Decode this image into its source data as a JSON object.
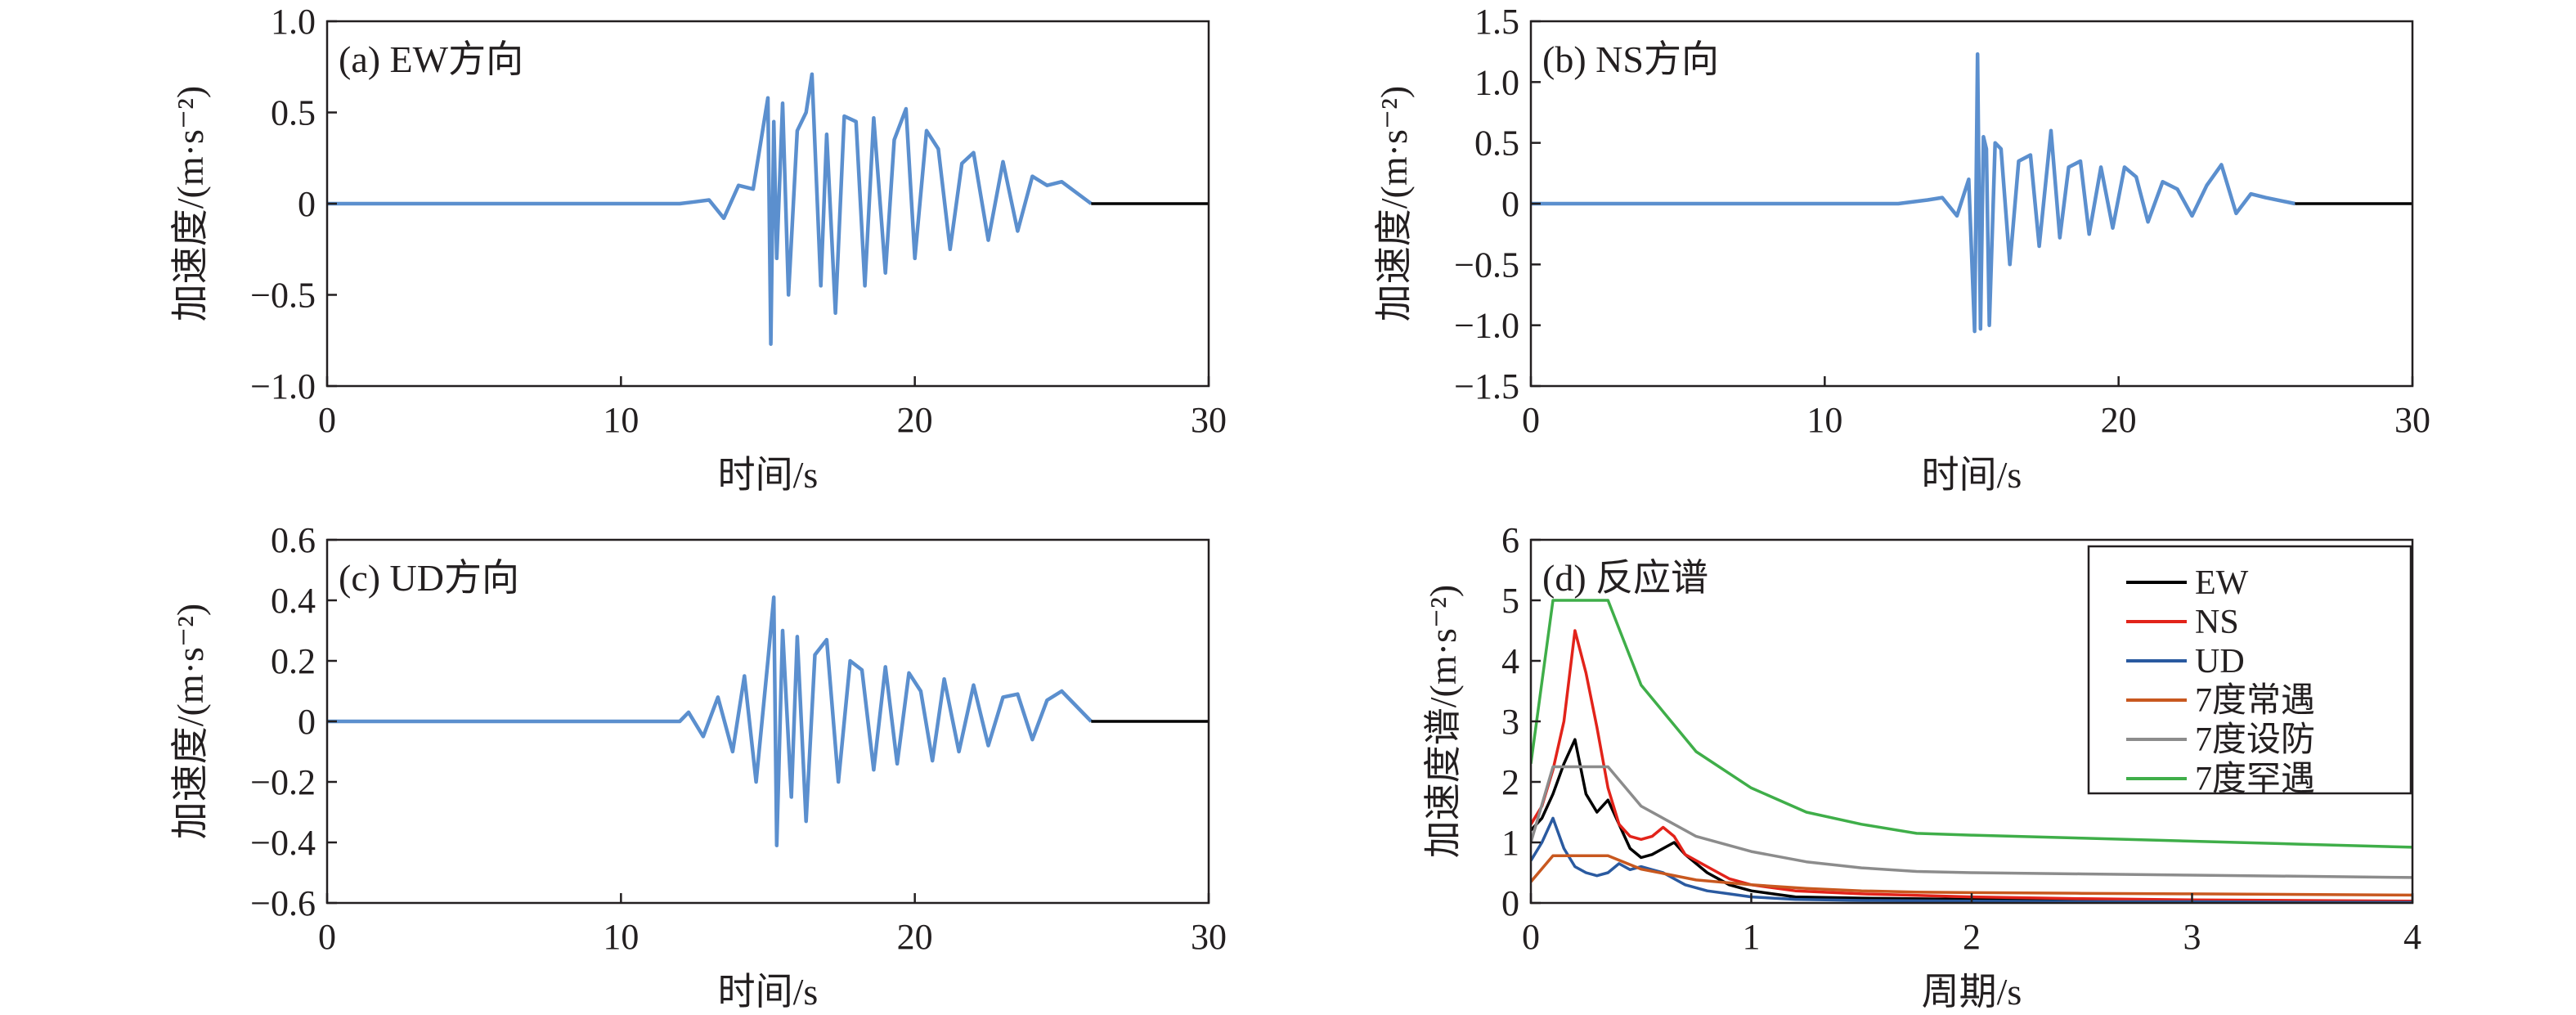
{
  "colors": {
    "axis": "#231f20",
    "wave": "#5b8fce",
    "baseline": "#000000",
    "EW": "#000000",
    "NS": "#e2231a",
    "UD": "#2a5aa0",
    "changyu": "#c8581f",
    "shefang": "#8c8c8c",
    "hanyu": "#3fae49"
  },
  "chart_data": [
    {
      "id": "a",
      "type": "line",
      "title": "(a) EW方向",
      "xlabel": "时间/s",
      "ylabel": "加速度/(m·s⁻²)",
      "xlim": [
        0,
        30
      ],
      "ylim": [
        -1.0,
        1.0
      ],
      "xticks": [
        0,
        10,
        20,
        30
      ],
      "xtick_labels": [
        "0",
        "10",
        "20",
        "30"
      ],
      "yticks": [
        -1.0,
        -0.5,
        0,
        0.5,
        1.0
      ],
      "ytick_labels": [
        "−1.0",
        "−0.5",
        "0",
        "0.5",
        "1.0"
      ],
      "grid": false,
      "series": [
        {
          "color": "#5b8fce",
          "x": [
            0,
            12,
            12.5,
            13,
            13.5,
            14,
            14.5,
            15,
            15.1,
            15.2,
            15.3,
            15.5,
            15.7,
            16,
            16.3,
            16.5,
            16.8,
            17,
            17.3,
            17.6,
            18,
            18.3,
            18.6,
            19,
            19.3,
            19.7,
            20,
            20.4,
            20.8,
            21.2,
            21.6,
            22,
            22.5,
            23,
            23.5,
            24,
            24.5,
            25,
            26
          ],
          "y": [
            0,
            0,
            0.01,
            0.02,
            -0.08,
            0.1,
            0.08,
            0.58,
            -0.77,
            0.45,
            -0.3,
            0.55,
            -0.5,
            0.4,
            0.5,
            0.71,
            -0.45,
            0.38,
            -0.6,
            0.48,
            0.45,
            -0.45,
            0.47,
            -0.38,
            0.35,
            0.52,
            -0.3,
            0.4,
            0.3,
            -0.25,
            0.22,
            0.28,
            -0.2,
            0.23,
            -0.15,
            0.15,
            0.1,
            0.12,
            0
          ]
        },
        {
          "color": "#000000",
          "x": [
            26,
            30
          ],
          "y": [
            0,
            0
          ]
        }
      ]
    },
    {
      "id": "b",
      "type": "line",
      "title": "(b) NS方向",
      "xlabel": "时间/s",
      "ylabel": "加速度/(m·s⁻²)",
      "xlim": [
        0,
        30
      ],
      "ylim": [
        -1.5,
        1.5
      ],
      "xticks": [
        0,
        10,
        20,
        30
      ],
      "xtick_labels": [
        "0",
        "10",
        "20",
        "30"
      ],
      "yticks": [
        -1.5,
        -1.0,
        -0.5,
        0,
        0.5,
        1.0,
        1.5
      ],
      "ytick_labels": [
        "−1.5",
        "−1.0",
        "−0.5",
        "0",
        "0.5",
        "1.0",
        "1.5"
      ],
      "grid": false,
      "series": [
        {
          "color": "#5b8fce",
          "x": [
            0,
            12.5,
            13.5,
            14,
            14.5,
            14.9,
            15.1,
            15.2,
            15.3,
            15.4,
            15.5,
            15.6,
            15.8,
            16,
            16.3,
            16.6,
            17,
            17.3,
            17.7,
            18,
            18.3,
            18.7,
            19,
            19.4,
            19.8,
            20.2,
            20.6,
            21,
            21.5,
            22,
            22.5,
            23,
            23.5,
            24,
            24.5,
            25,
            26
          ],
          "y": [
            0,
            0,
            0.03,
            0.05,
            -0.1,
            0.2,
            -1.05,
            1.23,
            -1.03,
            0.55,
            0.45,
            -1.0,
            0.5,
            0.45,
            -0.5,
            0.35,
            0.4,
            -0.35,
            0.6,
            -0.28,
            0.3,
            0.35,
            -0.25,
            0.3,
            -0.2,
            0.3,
            0.22,
            -0.15,
            0.18,
            0.12,
            -0.1,
            0.15,
            0.32,
            -0.08,
            0.08,
            0.05,
            0
          ]
        },
        {
          "color": "#000000",
          "x": [
            26,
            30
          ],
          "y": [
            0,
            0
          ]
        }
      ]
    },
    {
      "id": "c",
      "type": "line",
      "title": "(c) UD方向",
      "xlabel": "时间/s",
      "ylabel": "加速度/(m·s⁻²)",
      "xlim": [
        0,
        30
      ],
      "ylim": [
        -0.6,
        0.6
      ],
      "xticks": [
        0,
        10,
        20,
        30
      ],
      "xtick_labels": [
        "0",
        "10",
        "20",
        "30"
      ],
      "yticks": [
        -0.6,
        -0.4,
        -0.2,
        0,
        0.2,
        0.4,
        0.6
      ],
      "ytick_labels": [
        "−0.6",
        "−0.4",
        "−0.2",
        "0",
        "0.2",
        "0.4",
        "0.6"
      ],
      "grid": false,
      "series": [
        {
          "color": "#5b8fce",
          "x": [
            0,
            12,
            12.3,
            12.8,
            13.3,
            13.8,
            14.2,
            14.6,
            15,
            15.2,
            15.3,
            15.5,
            15.8,
            16,
            16.3,
            16.6,
            17,
            17.4,
            17.8,
            18.2,
            18.6,
            19,
            19.4,
            19.8,
            20.2,
            20.6,
            21,
            21.5,
            22,
            22.5,
            23,
            23.5,
            24,
            24.5,
            25,
            26
          ],
          "y": [
            0,
            0,
            0.03,
            -0.05,
            0.08,
            -0.1,
            0.15,
            -0.2,
            0.2,
            0.41,
            -0.41,
            0.3,
            -0.25,
            0.28,
            -0.33,
            0.22,
            0.27,
            -0.2,
            0.2,
            0.17,
            -0.16,
            0.18,
            -0.14,
            0.16,
            0.1,
            -0.13,
            0.14,
            -0.1,
            0.12,
            -0.08,
            0.08,
            0.09,
            -0.06,
            0.07,
            0.1,
            0
          ]
        },
        {
          "color": "#000000",
          "x": [
            26,
            30
          ],
          "y": [
            0,
            0
          ]
        }
      ]
    },
    {
      "id": "d",
      "type": "line",
      "title": "(d) 反应谱",
      "xlabel": "周期/s",
      "ylabel": "加速度谱/(m·s⁻²)",
      "xlim": [
        0,
        4
      ],
      "ylim": [
        0,
        6
      ],
      "xticks": [
        0,
        1,
        2,
        3,
        4
      ],
      "xtick_labels": [
        "0",
        "1",
        "2",
        "3",
        "4"
      ],
      "yticks": [
        0,
        1,
        2,
        3,
        4,
        5,
        6
      ],
      "ytick_labels": [
        "0",
        "1",
        "2",
        "3",
        "4",
        "5",
        "6"
      ],
      "grid": false,
      "legend_position": "top-right",
      "series": [
        {
          "name": "EW",
          "color": "#000000",
          "x": [
            0,
            0.05,
            0.1,
            0.15,
            0.2,
            0.25,
            0.3,
            0.35,
            0.4,
            0.45,
            0.5,
            0.55,
            0.6,
            0.65,
            0.7,
            0.8,
            0.9,
            1.0,
            1.2,
            1.5,
            2.0,
            2.5,
            3.0,
            3.5,
            4.0
          ],
          "y": [
            1.2,
            1.4,
            1.8,
            2.3,
            2.7,
            1.8,
            1.5,
            1.7,
            1.3,
            0.9,
            0.75,
            0.8,
            0.9,
            1.0,
            0.8,
            0.5,
            0.3,
            0.2,
            0.1,
            0.08,
            0.06,
            0.04,
            0.03,
            0.02,
            0.02
          ]
        },
        {
          "name": "NS",
          "color": "#e2231a",
          "x": [
            0,
            0.05,
            0.1,
            0.15,
            0.2,
            0.25,
            0.3,
            0.35,
            0.4,
            0.45,
            0.5,
            0.55,
            0.6,
            0.65,
            0.7,
            0.8,
            0.9,
            1.0,
            1.2,
            1.5,
            2.0,
            2.5,
            3.0,
            3.5,
            4.0
          ],
          "y": [
            1.3,
            1.6,
            2.2,
            3.0,
            4.5,
            3.8,
            2.9,
            1.9,
            1.3,
            1.1,
            1.05,
            1.1,
            1.25,
            1.1,
            0.8,
            0.6,
            0.4,
            0.3,
            0.2,
            0.15,
            0.1,
            0.07,
            0.05,
            0.04,
            0.03
          ]
        },
        {
          "name": "UD",
          "color": "#2a5aa0",
          "x": [
            0,
            0.05,
            0.1,
            0.15,
            0.2,
            0.25,
            0.3,
            0.35,
            0.4,
            0.45,
            0.5,
            0.55,
            0.6,
            0.7,
            0.8,
            0.9,
            1.0,
            1.2,
            1.5,
            2.0,
            2.5,
            3.0,
            3.5,
            4.0
          ],
          "y": [
            0.7,
            1.0,
            1.4,
            0.9,
            0.6,
            0.5,
            0.45,
            0.5,
            0.65,
            0.55,
            0.6,
            0.55,
            0.5,
            0.3,
            0.2,
            0.15,
            0.1,
            0.06,
            0.04,
            0.03,
            0.02,
            0.02,
            0.01,
            0.01
          ]
        },
        {
          "name": "7度常遇",
          "color": "#c8581f",
          "x": [
            0,
            0.1,
            0.35,
            0.5,
            0.75,
            1.0,
            1.25,
            1.5,
            1.75,
            2.0,
            2.5,
            3.0,
            3.5,
            4.0
          ],
          "y": [
            0.35,
            0.78,
            0.78,
            0.56,
            0.38,
            0.3,
            0.24,
            0.2,
            0.18,
            0.17,
            0.16,
            0.15,
            0.14,
            0.13
          ]
        },
        {
          "name": "7度设防",
          "color": "#8c8c8c",
          "x": [
            0,
            0.1,
            0.35,
            0.5,
            0.75,
            1.0,
            1.25,
            1.5,
            1.75,
            2.0,
            2.5,
            3.0,
            3.5,
            4.0
          ],
          "y": [
            1.0,
            2.25,
            2.25,
            1.6,
            1.1,
            0.85,
            0.68,
            0.58,
            0.52,
            0.5,
            0.48,
            0.46,
            0.44,
            0.42
          ]
        },
        {
          "name": "7度罕遇",
          "color": "#3fae49",
          "x": [
            0,
            0.1,
            0.35,
            0.5,
            0.75,
            1.0,
            1.25,
            1.5,
            1.75,
            2.0,
            2.5,
            3.0,
            3.5,
            4.0
          ],
          "y": [
            2.3,
            5.0,
            5.0,
            3.6,
            2.5,
            1.9,
            1.5,
            1.3,
            1.15,
            1.12,
            1.07,
            1.02,
            0.97,
            0.92
          ]
        }
      ]
    }
  ]
}
